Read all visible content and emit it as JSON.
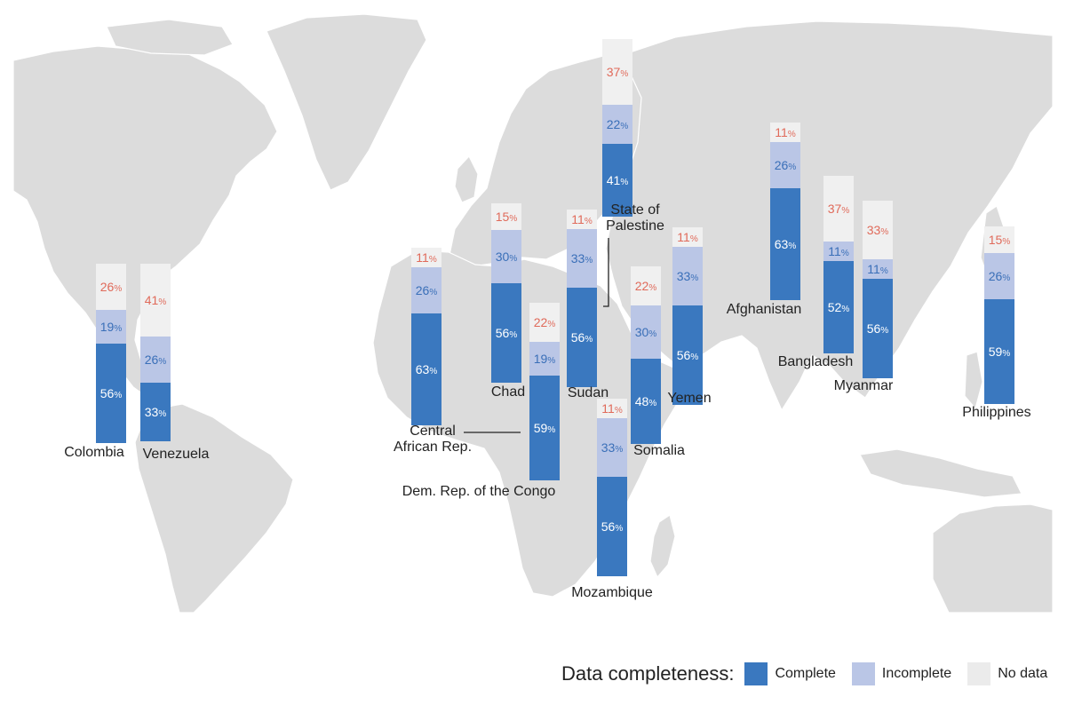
{
  "chart_data": {
    "type": "bar",
    "subtype": "stacked-percent-bars-on-world-map",
    "value_unit": "%",
    "series": [
      {
        "name": "Complete",
        "key": "complete",
        "color": "#3a78bf"
      },
      {
        "name": "Incomplete",
        "key": "incomplete",
        "color": "#bac6e6"
      },
      {
        "name": "No data",
        "key": "no_data",
        "color": "#f0f0f0"
      }
    ],
    "label_colors": {
      "complete": "#ffffff",
      "incomplete": "#3a6fb8",
      "no_data": "#e06a5a"
    },
    "countries": [
      {
        "name": "Colombia",
        "complete": 56,
        "incomplete": 19,
        "no_data": 26
      },
      {
        "name": "Venezuela",
        "complete": 33,
        "incomplete": 26,
        "no_data": 41
      },
      {
        "name": "Central African Rep.",
        "complete": 63,
        "incomplete": 26,
        "no_data": 11
      },
      {
        "name": "Chad",
        "complete": 56,
        "incomplete": 30,
        "no_data": 15
      },
      {
        "name": "Dem. Rep. of the Congo",
        "complete": 59,
        "incomplete": 19,
        "no_data": 22
      },
      {
        "name": "Sudan",
        "complete": 56,
        "incomplete": 33,
        "no_data": 11
      },
      {
        "name": "State of Palestine",
        "complete": 41,
        "incomplete": 22,
        "no_data": 37
      },
      {
        "name": "Mozambique",
        "complete": 56,
        "incomplete": 33,
        "no_data": 11
      },
      {
        "name": "Somalia",
        "complete": 48,
        "incomplete": 30,
        "no_data": 22
      },
      {
        "name": "Yemen",
        "complete": 56,
        "incomplete": 33,
        "no_data": 11
      },
      {
        "name": "Afghanistan",
        "complete": 63,
        "incomplete": 26,
        "no_data": 11
      },
      {
        "name": "Bangladesh",
        "complete": 52,
        "incomplete": 11,
        "no_data": 37
      },
      {
        "name": "Myanmar",
        "complete": 56,
        "incomplete": 11,
        "no_data": 33
      },
      {
        "name": "Philippines",
        "complete": 59,
        "incomplete": 26,
        "no_data": 15
      }
    ]
  },
  "legend": {
    "title": "Data completeness:",
    "items": [
      {
        "label": "Complete",
        "color": "#3a78bf"
      },
      {
        "label": "Incomplete",
        "color": "#bac6e6"
      },
      {
        "label": "No data",
        "color": "#ebebeb"
      }
    ]
  },
  "colors": {
    "map_ocean": "#ffffff",
    "map_land": "#dcdcdc",
    "map_border": "#ffffff"
  }
}
